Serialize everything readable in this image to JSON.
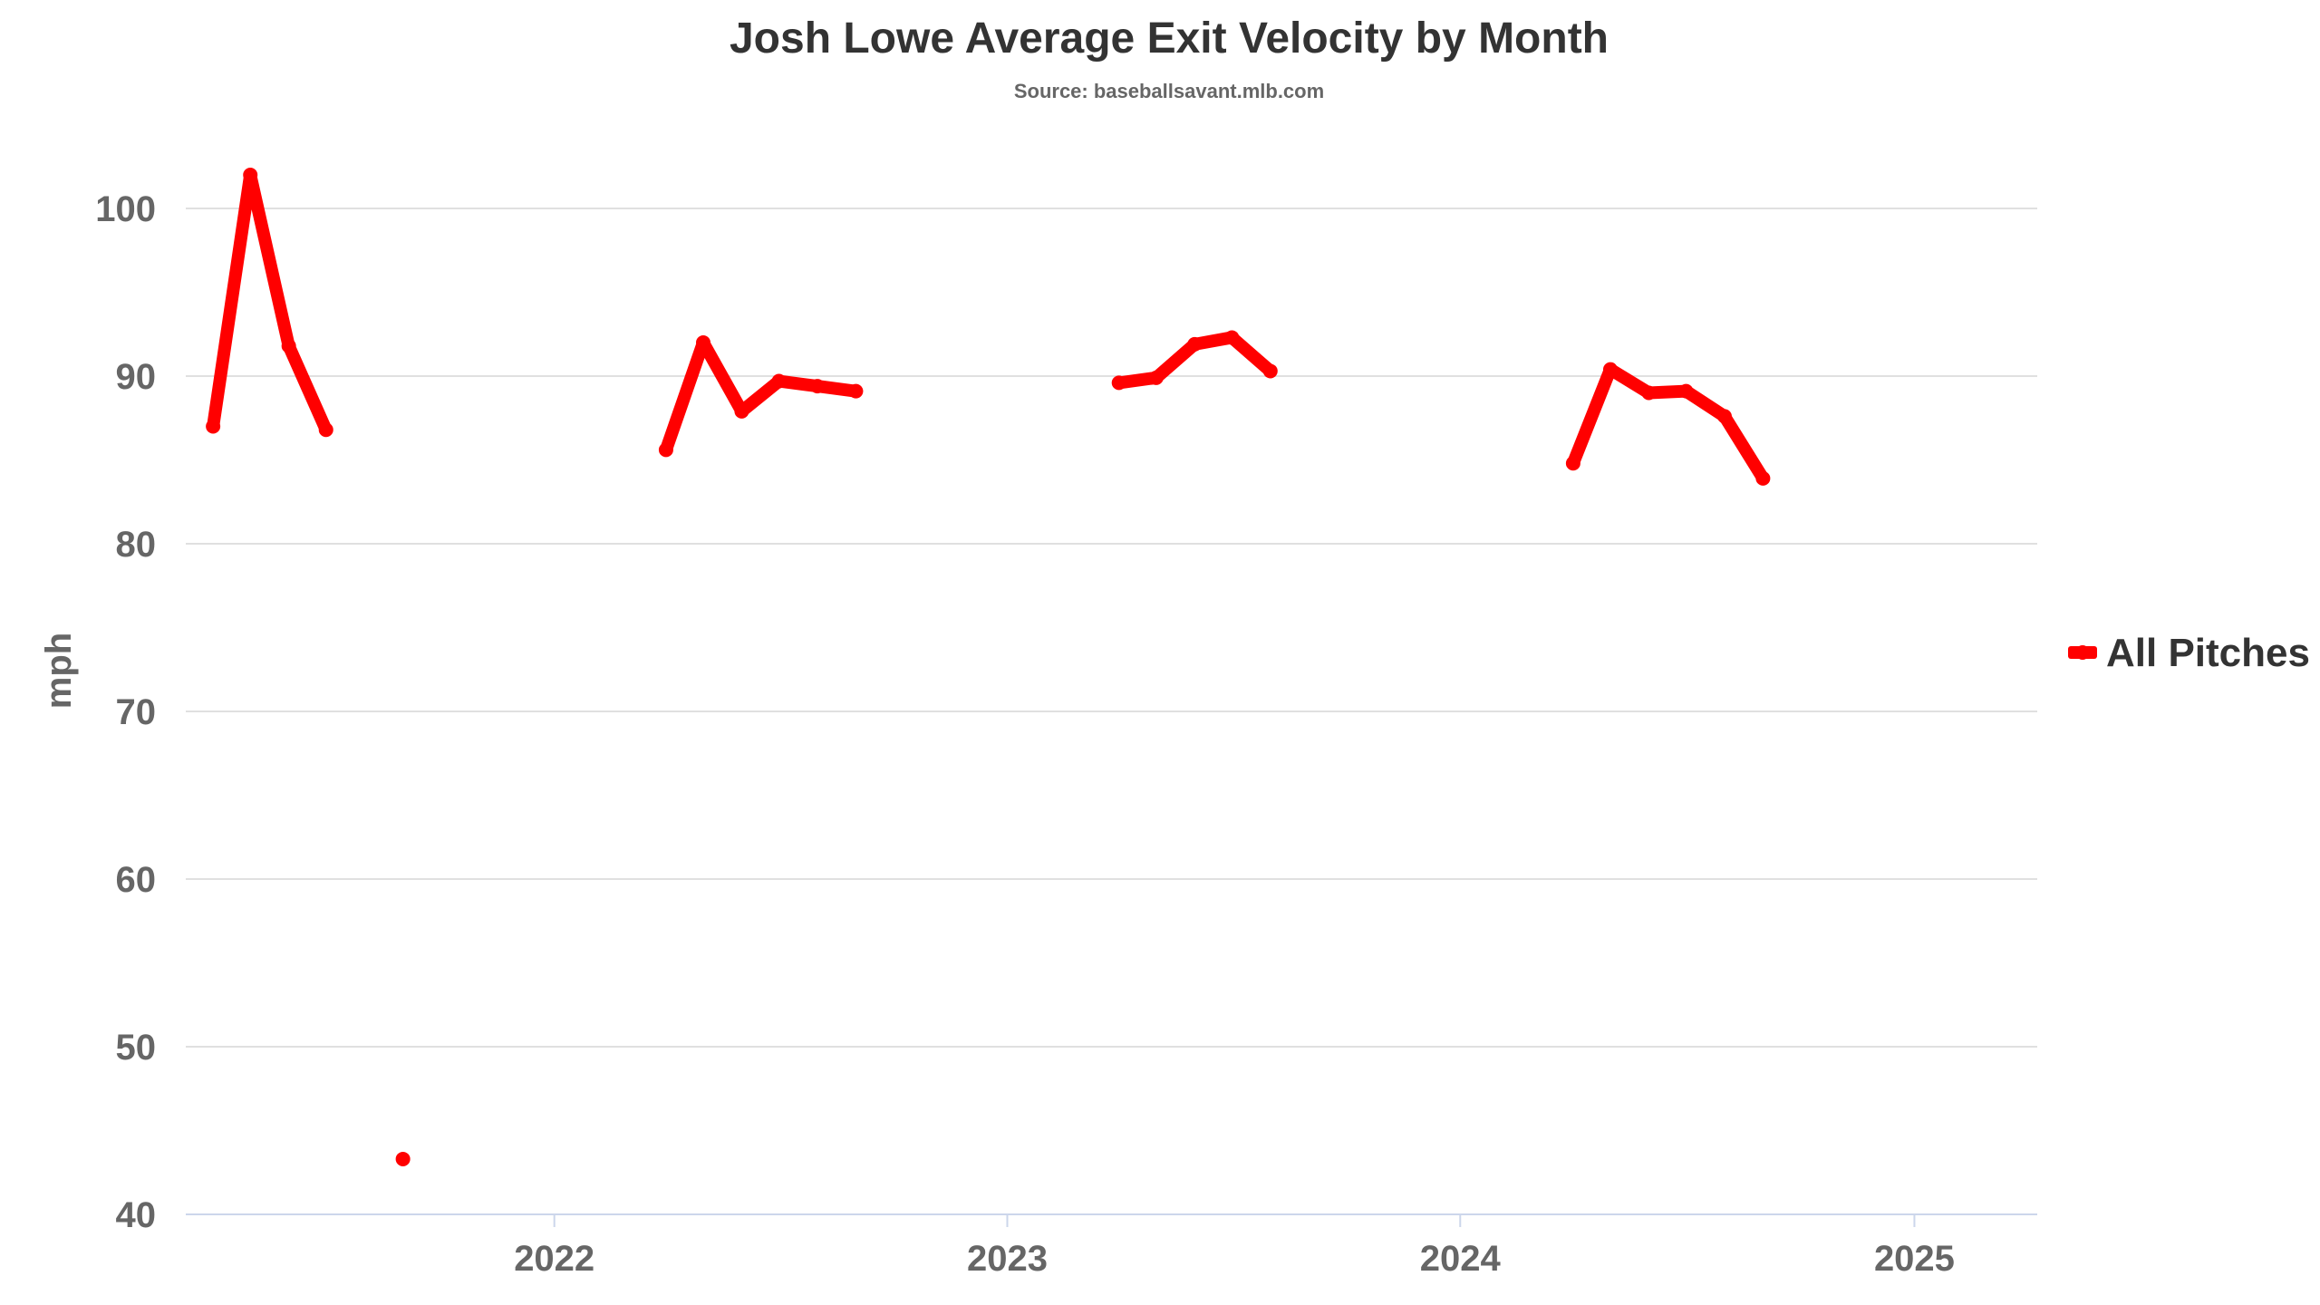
{
  "chart_data": {
    "type": "line",
    "title": "Josh Lowe Average Exit Velocity by Month",
    "subtitle": "Source: baseballsavant.mlb.com",
    "xlabel": "",
    "ylabel": "mph",
    "ylim": [
      40,
      105
    ],
    "y_ticks": [
      40,
      50,
      60,
      70,
      80,
      90,
      100
    ],
    "x_range": [
      "2021-03-10",
      "2025-04-10"
    ],
    "x_ticks": [
      {
        "date": "2022-01-01",
        "label": "2022"
      },
      {
        "date": "2023-01-01",
        "label": "2023"
      },
      {
        "date": "2024-01-01",
        "label": "2024"
      },
      {
        "date": "2025-01-01",
        "label": "2025"
      }
    ],
    "grid": true,
    "legend_position": "right",
    "series": [
      {
        "name": "All Pitches",
        "color": "#ff0000",
        "segments": [
          [
            {
              "x": "2021-09-01",
              "y": 43.3
            }
          ],
          [
            {
              "x": "2021-04-01",
              "y": 87.0
            },
            {
              "x": "2021-05-01",
              "y": 102.0
            },
            {
              "x": "2021-06-01",
              "y": 91.8
            },
            {
              "x": "2021-07-01",
              "y": 86.8
            }
          ],
          [
            {
              "x": "2022-04-01",
              "y": 85.6
            },
            {
              "x": "2022-05-01",
              "y": 92.0
            },
            {
              "x": "2022-06-01",
              "y": 87.9
            },
            {
              "x": "2022-07-01",
              "y": 89.7
            },
            {
              "x": "2022-08-01",
              "y": 89.4
            },
            {
              "x": "2022-09-01",
              "y": 89.1
            }
          ],
          [
            {
              "x": "2023-04-01",
              "y": 89.6
            },
            {
              "x": "2023-05-01",
              "y": 89.9
            },
            {
              "x": "2023-06-01",
              "y": 91.9
            },
            {
              "x": "2023-07-01",
              "y": 92.3
            },
            {
              "x": "2023-08-01",
              "y": 90.3
            }
          ],
          [
            {
              "x": "2024-04-01",
              "y": 84.8
            },
            {
              "x": "2024-05-01",
              "y": 90.4
            },
            {
              "x": "2024-06-01",
              "y": 89.0
            },
            {
              "x": "2024-07-01",
              "y": 89.1
            },
            {
              "x": "2024-08-01",
              "y": 87.6
            },
            {
              "x": "2024-09-01",
              "y": 83.9
            }
          ]
        ]
      }
    ]
  }
}
